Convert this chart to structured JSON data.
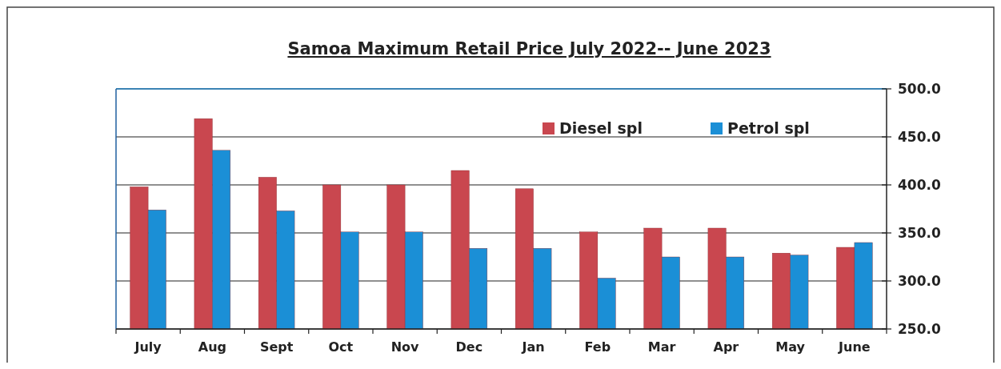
{
  "chart_data": {
    "type": "bar",
    "title": "Samoa Maximum Retail  Price   July  2022-- June 2023",
    "categories": [
      "July",
      "Aug",
      "Sept",
      "Oct",
      "Nov",
      "Dec",
      "Jan",
      "Feb",
      "Mar",
      "Apr",
      "May",
      "June"
    ],
    "series": [
      {
        "name": "Diesel spl",
        "color": "#c9474f",
        "values": [
          398,
          469,
          408,
          400,
          400,
          415,
          396,
          351,
          355,
          355,
          329,
          335
        ]
      },
      {
        "name": "Petrol spl",
        "color": "#1b8fd6",
        "values": [
          374,
          436,
          373,
          351,
          351,
          334,
          334,
          303,
          325,
          325,
          327,
          340
        ]
      }
    ],
    "ylim": [
      250,
      500
    ],
    "yticks": [
      {
        "value": 250,
        "label": "250.0"
      },
      {
        "value": 300,
        "label": "300.0"
      },
      {
        "value": 350,
        "label": "350.0"
      },
      {
        "value": 400,
        "label": "400.0"
      },
      {
        "value": 450,
        "label": "450.0"
      },
      {
        "value": 500,
        "label": "500.0"
      }
    ],
    "grid": "y",
    "legend": "top right"
  }
}
